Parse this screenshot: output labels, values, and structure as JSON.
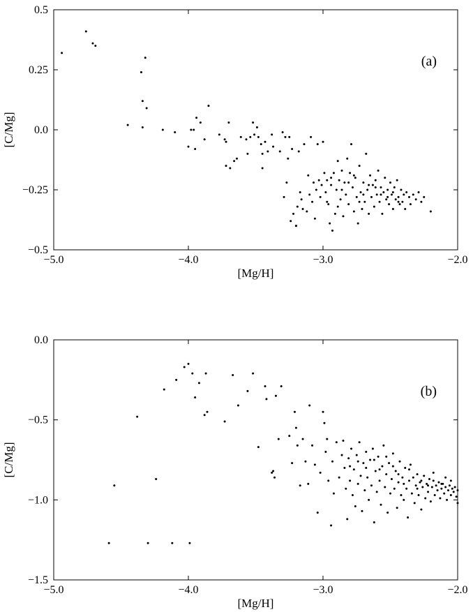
{
  "chart_data": [
    {
      "type": "scatter",
      "panel_label": "(a)",
      "xlabel": "[Mg/H]",
      "ylabel": "[C/Mg]",
      "xlim": [
        -5.0,
        -2.0
      ],
      "ylim": [
        -0.5,
        0.5
      ],
      "xticks": [
        "−5.0",
        "−4.0",
        "−3.0",
        "−2.0"
      ],
      "yticks": [
        "−0.5",
        "−0.25",
        "0.0",
        "0.25",
        "0.5"
      ],
      "grid": false,
      "points": [
        [
          -4.94,
          0.32
        ],
        [
          -4.76,
          0.41
        ],
        [
          -4.71,
          0.36
        ],
        [
          -4.69,
          0.35
        ],
        [
          -4.45,
          0.02
        ],
        [
          -4.35,
          0.24
        ],
        [
          -4.34,
          0.12
        ],
        [
          -4.34,
          0.01
        ],
        [
          -4.32,
          0.3
        ],
        [
          -4.31,
          0.09
        ],
        [
          -4.19,
          0.0
        ],
        [
          -4.1,
          -0.01
        ],
        [
          -4.0,
          -0.07
        ],
        [
          -3.98,
          0.0
        ],
        [
          -3.96,
          0.0
        ],
        [
          -3.95,
          -0.08
        ],
        [
          -3.94,
          0.05
        ],
        [
          -3.91,
          0.03
        ],
        [
          -3.88,
          -0.04
        ],
        [
          -3.85,
          0.1
        ],
        [
          -3.77,
          -0.02
        ],
        [
          -3.73,
          -0.04
        ],
        [
          -3.72,
          -0.05
        ],
        [
          -3.72,
          -0.15
        ],
        [
          -3.7,
          0.03
        ],
        [
          -3.69,
          -0.16
        ],
        [
          -3.66,
          -0.13
        ],
        [
          -3.64,
          -0.12
        ],
        [
          -3.61,
          -0.03
        ],
        [
          -3.57,
          -0.04
        ],
        [
          -3.56,
          -0.1
        ],
        [
          -3.54,
          -0.03
        ],
        [
          -3.52,
          0.03
        ],
        [
          -3.51,
          -0.02
        ],
        [
          -3.49,
          0.01
        ],
        [
          -3.48,
          -0.03
        ],
        [
          -3.46,
          -0.06
        ],
        [
          -3.45,
          -0.1
        ],
        [
          -3.45,
          -0.16
        ],
        [
          -3.43,
          -0.05
        ],
        [
          -3.41,
          -0.09
        ],
        [
          -3.38,
          -0.02
        ],
        [
          -3.37,
          -0.07
        ],
        [
          -3.32,
          -0.09
        ],
        [
          -3.3,
          -0.01
        ],
        [
          -3.29,
          -0.28
        ],
        [
          -3.28,
          -0.03
        ],
        [
          -3.27,
          -0.22
        ],
        [
          -3.26,
          -0.12
        ],
        [
          -3.25,
          -0.03
        ],
        [
          -3.24,
          -0.38
        ],
        [
          -3.23,
          -0.08
        ],
        [
          -3.22,
          -0.35
        ],
        [
          -3.2,
          -0.4
        ],
        [
          -3.2,
          -0.4
        ],
        [
          -3.19,
          -0.32
        ],
        [
          -3.18,
          -0.09
        ],
        [
          -3.17,
          -0.26
        ],
        [
          -3.16,
          -0.29
        ],
        [
          -3.15,
          -0.33
        ],
        [
          -3.14,
          -0.06
        ],
        [
          -3.12,
          -0.34
        ],
        [
          -3.11,
          -0.19
        ],
        [
          -3.1,
          -0.27
        ],
        [
          -3.09,
          -0.03
        ],
        [
          -3.08,
          -0.3
        ],
        [
          -3.07,
          -0.22
        ],
        [
          -3.05,
          -0.25
        ],
        [
          -3.04,
          -0.06
        ],
        [
          -3.03,
          -0.21
        ],
        [
          -3.02,
          -0.28
        ],
        [
          -3.01,
          -0.23
        ],
        [
          -3.0,
          -0.05
        ],
        [
          -2.99,
          -0.18
        ],
        [
          -2.98,
          -0.26
        ],
        [
          -2.97,
          -0.21
        ],
        [
          -2.96,
          -0.31
        ],
        [
          -2.95,
          -0.39
        ],
        [
          -2.94,
          -0.23
        ],
        [
          -2.93,
          -0.42
        ],
        [
          -2.92,
          -0.18
        ],
        [
          -2.91,
          -0.35
        ],
        [
          -2.9,
          -0.25
        ],
        [
          -2.89,
          -0.13
        ],
        [
          -2.88,
          -0.21
        ],
        [
          -2.87,
          -0.29
        ],
        [
          -2.86,
          -0.17
        ],
        [
          -2.85,
          -0.36
        ],
        [
          -2.84,
          -0.22
        ],
        [
          -2.83,
          -0.27
        ],
        [
          -2.82,
          -0.12
        ],
        [
          -2.81,
          -0.31
        ],
        [
          -2.8,
          -0.18
        ],
        [
          -2.79,
          -0.06
        ],
        [
          -2.78,
          -0.24
        ],
        [
          -2.77,
          -0.34
        ],
        [
          -2.76,
          -0.2
        ],
        [
          -2.75,
          -0.28
        ],
        [
          -2.74,
          -0.39
        ],
        [
          -2.73,
          -0.15
        ],
        [
          -2.72,
          -0.26
        ],
        [
          -2.71,
          -0.33
        ],
        [
          -2.7,
          -0.22
        ],
        [
          -2.69,
          -0.3
        ],
        [
          -2.68,
          -0.1
        ],
        [
          -2.67,
          -0.25
        ],
        [
          -2.66,
          -0.35
        ],
        [
          -2.65,
          -0.19
        ],
        [
          -2.64,
          -0.28
        ],
        [
          -2.63,
          -0.23
        ],
        [
          -2.62,
          -0.32
        ],
        [
          -2.61,
          -0.21
        ],
        [
          -2.6,
          -0.27
        ],
        [
          -2.59,
          -0.17
        ],
        [
          -2.58,
          -0.3
        ],
        [
          -2.57,
          -0.24
        ],
        [
          -2.56,
          -0.35
        ],
        [
          -2.55,
          -0.26
        ],
        [
          -2.54,
          -0.2
        ],
        [
          -2.53,
          -0.29
        ],
        [
          -2.52,
          -0.25
        ],
        [
          -2.51,
          -0.31
        ],
        [
          -2.5,
          -0.22
        ],
        [
          -2.49,
          -0.27
        ],
        [
          -2.48,
          -0.33
        ],
        [
          -2.47,
          -0.24
        ],
        [
          -2.46,
          -0.29
        ],
        [
          -2.45,
          -0.21
        ],
        [
          -2.44,
          -0.28
        ],
        [
          -2.43,
          -0.31
        ],
        [
          -2.42,
          -0.25
        ],
        [
          -2.41,
          -0.3
        ],
        [
          -2.4,
          -0.27
        ],
        [
          -2.39,
          -0.33
        ],
        [
          -2.38,
          -0.26
        ],
        [
          -2.36,
          -0.28
        ],
        [
          -2.35,
          -0.31
        ],
        [
          -2.33,
          -0.27
        ],
        [
          -2.31,
          -0.29
        ],
        [
          -2.29,
          -0.26
        ],
        [
          -2.27,
          -0.3
        ],
        [
          -2.25,
          -0.28
        ],
        [
          -2.2,
          -0.34
        ],
        [
          -2.94,
          -0.2
        ],
        [
          -2.86,
          -0.25
        ],
        [
          -2.77,
          -0.19
        ],
        [
          -2.7,
          -0.27
        ],
        [
          -2.61,
          -0.24
        ],
        [
          -2.57,
          -0.27
        ],
        [
          -2.52,
          -0.28
        ],
        [
          -2.48,
          -0.26
        ],
        [
          -2.44,
          -0.3
        ],
        [
          -2.66,
          -0.23
        ],
        [
          -2.73,
          -0.3
        ],
        [
          -2.81,
          -0.22
        ],
        [
          -2.89,
          -0.32
        ],
        [
          -3.06,
          -0.37
        ],
        [
          -2.97,
          -0.3
        ]
      ]
    },
    {
      "type": "scatter",
      "panel_label": "(b)",
      "xlabel": "[Mg/H]",
      "ylabel": "[C/Mg]",
      "xlim": [
        -5.0,
        -2.0
      ],
      "ylim": [
        -1.5,
        0.0
      ],
      "xticks": [
        "−5.0",
        "−4.0",
        "−3.0",
        "−2.0"
      ],
      "yticks": [
        "−1.5",
        "−1.0",
        "−0.5",
        "0.0"
      ],
      "grid": false,
      "points": [
        [
          -4.59,
          -1.27
        ],
        [
          -4.55,
          -0.91
        ],
        [
          -4.38,
          -0.48
        ],
        [
          -4.3,
          -1.27
        ],
        [
          -4.24,
          -0.87
        ],
        [
          -4.18,
          -0.31
        ],
        [
          -4.12,
          -1.27
        ],
        [
          -4.09,
          -0.25
        ],
        [
          -4.03,
          -0.17
        ],
        [
          -4.0,
          -0.15
        ],
        [
          -3.99,
          -1.27
        ],
        [
          -3.97,
          -0.21
        ],
        [
          -3.95,
          -0.36
        ],
        [
          -3.92,
          -0.27
        ],
        [
          -3.88,
          -0.47
        ],
        [
          -3.87,
          -0.21
        ],
        [
          -3.86,
          -0.45
        ],
        [
          -3.73,
          -0.51
        ],
        [
          -3.67,
          -0.22
        ],
        [
          -3.63,
          -0.41
        ],
        [
          -3.56,
          -0.32
        ],
        [
          -3.52,
          -0.21
        ],
        [
          -3.48,
          -0.67
        ],
        [
          -3.43,
          -0.29
        ],
        [
          -3.42,
          -0.37
        ],
        [
          -3.38,
          -0.83
        ],
        [
          -3.37,
          -0.82
        ],
        [
          -3.36,
          -0.86
        ],
        [
          -3.35,
          -0.35
        ],
        [
          -3.33,
          -0.62
        ],
        [
          -3.31,
          -0.29
        ],
        [
          -3.25,
          -0.6
        ],
        [
          -3.23,
          -0.77
        ],
        [
          -3.21,
          -0.45
        ],
        [
          -3.2,
          -0.55
        ],
        [
          -3.19,
          -0.66
        ],
        [
          -3.17,
          -0.91
        ],
        [
          -3.15,
          -0.62
        ],
        [
          -3.13,
          -0.76
        ],
        [
          -3.11,
          -0.9
        ],
        [
          -3.1,
          -0.41
        ],
        [
          -3.08,
          -0.66
        ],
        [
          -3.06,
          -0.78
        ],
        [
          -3.04,
          -1.08
        ],
        [
          -3.02,
          -0.83
        ],
        [
          -3.0,
          -0.45
        ],
        [
          -2.99,
          -0.52
        ],
        [
          -2.98,
          -0.7
        ],
        [
          -2.97,
          -0.62
        ],
        [
          -2.96,
          -0.88
        ],
        [
          -2.94,
          -1.16
        ],
        [
          -2.93,
          -0.76
        ],
        [
          -2.92,
          -0.96
        ],
        [
          -2.9,
          -0.64
        ],
        [
          -2.88,
          -0.86
        ],
        [
          -2.86,
          -0.72
        ],
        [
          -2.85,
          -0.63
        ],
        [
          -2.84,
          -0.8
        ],
        [
          -2.83,
          -0.93
        ],
        [
          -2.82,
          -1.12
        ],
        [
          -2.81,
          -0.74
        ],
        [
          -2.8,
          -0.88
        ],
        [
          -2.79,
          -0.68
        ],
        [
          -2.78,
          -0.97
        ],
        [
          -2.77,
          -0.81
        ],
        [
          -2.76,
          -1.04
        ],
        [
          -2.75,
          -0.72
        ],
        [
          -2.74,
          -0.9
        ],
        [
          -2.73,
          -0.64
        ],
        [
          -2.72,
          -0.85
        ],
        [
          -2.71,
          -1.07
        ],
        [
          -2.7,
          -0.77
        ],
        [
          -2.69,
          -0.94
        ],
        [
          -2.68,
          -0.7
        ],
        [
          -2.67,
          -0.86
        ],
        [
          -2.66,
          -1.0
        ],
        [
          -2.65,
          -0.75
        ],
        [
          -2.64,
          -0.91
        ],
        [
          -2.63,
          -0.68
        ],
        [
          -2.62,
          -1.14
        ],
        [
          -2.61,
          -0.82
        ],
        [
          -2.6,
          -0.95
        ],
        [
          -2.59,
          -0.73
        ],
        [
          -2.58,
          -0.88
        ],
        [
          -2.57,
          -1.03
        ],
        [
          -2.56,
          -0.79
        ],
        [
          -2.55,
          -0.66
        ],
        [
          -2.54,
          -0.92
        ],
        [
          -2.53,
          -0.84
        ],
        [
          -2.52,
          -1.08
        ],
        [
          -2.51,
          -0.77
        ],
        [
          -2.5,
          -0.96
        ],
        [
          -2.49,
          -0.87
        ],
        [
          -2.48,
          -0.71
        ],
        [
          -2.47,
          -0.93
        ],
        [
          -2.46,
          -0.82
        ],
        [
          -2.45,
          -1.05
        ],
        [
          -2.44,
          -0.89
        ],
        [
          -2.43,
          -0.76
        ],
        [
          -2.42,
          -0.97
        ],
        [
          -2.41,
          -0.86
        ],
        [
          -2.4,
          -1.0
        ],
        [
          -2.39,
          -0.8
        ],
        [
          -2.38,
          -0.93
        ],
        [
          -2.37,
          -1.11
        ],
        [
          -2.36,
          -0.88
        ],
        [
          -2.35,
          -0.78
        ],
        [
          -2.34,
          -0.96
        ],
        [
          -2.33,
          -0.86
        ],
        [
          -2.32,
          -1.02
        ],
        [
          -2.31,
          -0.91
        ],
        [
          -2.3,
          -0.84
        ],
        [
          -2.29,
          -0.97
        ],
        [
          -2.28,
          -0.89
        ],
        [
          -2.27,
          -1.06
        ],
        [
          -2.26,
          -0.92
        ],
        [
          -2.25,
          -0.85
        ],
        [
          -2.24,
          -0.99
        ],
        [
          -2.23,
          -0.9
        ],
        [
          -2.22,
          -0.95
        ],
        [
          -2.21,
          -0.87
        ],
        [
          -2.2,
          -1.01
        ],
        [
          -2.19,
          -0.92
        ],
        [
          -2.18,
          -0.88
        ],
        [
          -2.17,
          -0.97
        ],
        [
          -2.16,
          -0.91
        ],
        [
          -2.15,
          -0.94
        ],
        [
          -2.14,
          -0.89
        ],
        [
          -2.13,
          -0.99
        ],
        [
          -2.12,
          -0.93
        ],
        [
          -2.11,
          -0.9
        ],
        [
          -2.1,
          -0.96
        ],
        [
          -2.09,
          -0.92
        ],
        [
          -2.08,
          -1.0
        ],
        [
          -2.07,
          -0.94
        ],
        [
          -2.06,
          -0.91
        ],
        [
          -2.05,
          -0.97
        ],
        [
          -2.04,
          -0.93
        ],
        [
          -2.03,
          -0.95
        ],
        [
          -2.02,
          -0.92
        ],
        [
          -2.01,
          -0.98
        ],
        [
          -2.0,
          -0.94
        ],
        [
          -2.0,
          -1.02
        ],
        [
          -2.62,
          -0.75
        ],
        [
          -2.58,
          -0.81
        ],
        [
          -2.53,
          -0.73
        ],
        [
          -2.44,
          -0.84
        ],
        [
          -2.36,
          -0.81
        ],
        [
          -2.27,
          -0.88
        ],
        [
          -2.18,
          -0.83
        ],
        [
          -2.09,
          -0.86
        ],
        [
          -2.05,
          -0.88
        ],
        [
          -2.68,
          -0.8
        ],
        [
          -2.74,
          -0.76
        ],
        [
          -2.8,
          -0.79
        ],
        [
          -2.48,
          -0.79
        ],
        [
          -2.4,
          -0.9
        ],
        [
          -2.3,
          -0.93
        ],
        [
          -2.22,
          -0.91
        ],
        [
          -2.12,
          -0.9
        ]
      ]
    }
  ]
}
